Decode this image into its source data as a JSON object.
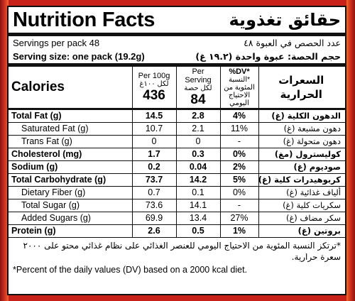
{
  "title_en": "Nutrition Facts",
  "title_ar": "حقائق تغذوية",
  "servings_en": "Servings per pack 48",
  "servings_ar": "عدد الحصص في العبوة ٤٨",
  "serving_size_en": "Serving size: one pack (19.2g)",
  "serving_size_ar": "حجم الحصة: عبوة واحدة (١٩.٢ غ)",
  "header": {
    "calories_en": "Calories",
    "calories_ar": "السعرات الحرارية",
    "per100_en": "Per 100g",
    "per100_ar": "لكل ١٠٠غ",
    "per100_value": "436",
    "serving_en": "Per Serving",
    "serving_ar": "لكل حصة",
    "serving_value": "84",
    "dv_en": "%DV*",
    "dv_ar": "*النسبة المئوية من الاحتياج اليومي"
  },
  "rows": [
    {
      "en": "Total Fat (g)",
      "p100": "14.5",
      "ps": "2.8",
      "dv": "4%",
      "ar": "الدهون الكلية (غ)",
      "bold": true,
      "indent": false
    },
    {
      "en": "Saturated Fat (g)",
      "p100": "10.7",
      "ps": "2.1",
      "dv": "11%",
      "ar": "دهون مشبعة (غ)",
      "bold": false,
      "indent": true
    },
    {
      "en": "Trans Fat (g)",
      "p100": "0",
      "ps": "0",
      "dv": "-",
      "ar": "دهون متحولة (غ)",
      "bold": false,
      "indent": true
    },
    {
      "en": "Cholesterol (mg)",
      "p100": "1.7",
      "ps": "0.3",
      "dv": "0%",
      "ar": "كوليسترول (مغ)",
      "bold": true,
      "indent": false
    },
    {
      "en": "Sodium (g)",
      "p100": "0.2",
      "ps": "0.04",
      "dv": "2%",
      "ar": "صوديوم (غ)",
      "bold": true,
      "indent": false
    },
    {
      "en": "Total Carbohydrate (g)",
      "p100": "73.7",
      "ps": "14.2",
      "dv": "5%",
      "ar": "كربوهيدرات كلية (غ)",
      "bold": true,
      "indent": false
    },
    {
      "en": "Dietary Fiber (g)",
      "p100": "0.7",
      "ps": "0.1",
      "dv": "0%",
      "ar": "ألياف غذائية (غ)",
      "bold": false,
      "indent": true
    },
    {
      "en": "Total Sugar (g)",
      "p100": "73.6",
      "ps": "14.1",
      "dv": "-",
      "ar": "سكريات كلية (غ)",
      "bold": false,
      "indent": true
    },
    {
      "en": "Added Sugars (g)",
      "p100": "69.9",
      "ps": "13.4",
      "dv": "27%",
      "ar": "سكر مضاف (غ)",
      "bold": false,
      "indent": true
    },
    {
      "en": "Protein (g)",
      "p100": "2.6",
      "ps": "0.5",
      "dv": "1%",
      "ar": "بروتين (غ)",
      "bold": true,
      "indent": false
    }
  ],
  "footnote_ar": "*ترتكز النسبة المئوية من الاحتياج اليومي للعنصر الغذائي على نظام غذائي محتو على ٢٠٠٠ سعرة حرارية.",
  "footnote_en": "*Percent of the daily values (DV) based on a 2000 kcal diet."
}
